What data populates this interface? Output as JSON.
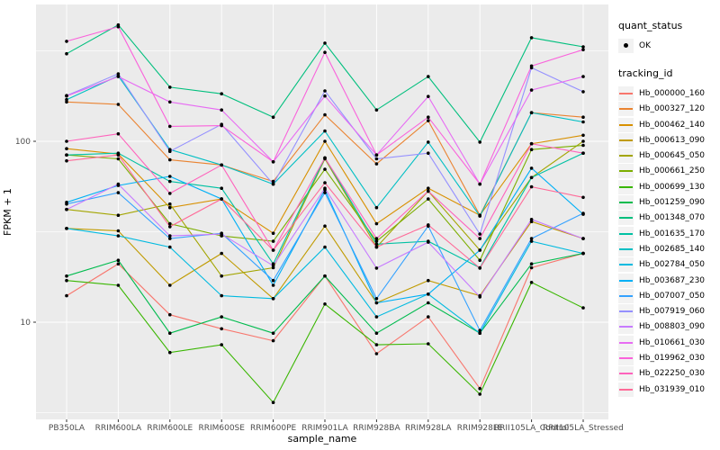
{
  "figure": {
    "background": "#FFFFFF",
    "panel_background": "#EBEBEB",
    "grid_color": "#FFFFFF",
    "point_color": "#000000",
    "tick_mark_color": "#333333",
    "tick_label_color": "#4D4D4D",
    "axis_title_color": "#000000",
    "legend_key_background": "#F2F2F2"
  },
  "axes": {
    "x_title": "sample_name",
    "y_title": "FPKM + 1",
    "y_tick_labels": [
      "10",
      "100"
    ]
  },
  "legend": {
    "quant_status_title": "quant_status",
    "quant_status_item": "OK",
    "tracking_title": "tracking_id"
  },
  "chart_data": {
    "type": "line",
    "title": "",
    "xlabel": "sample_name",
    "ylabel": "FPKM + 1",
    "y_scale": "log10",
    "ylim": [
      2.9,
      570
    ],
    "y_major_gridlines": [
      10,
      100
    ],
    "y_minor_gridlines": [
      3.16,
      31.6,
      316
    ],
    "grid": true,
    "legend_position": "right",
    "point_marker": "black dot at every vertex (quant_status OK)",
    "categories": [
      "PB350LA",
      "RRIM600LA",
      "RRIM600LE",
      "RRIM600SE",
      "RRIM600PE",
      "RRIM901LA",
      "RRIM928BA",
      "RRIM928LA",
      "RRIM928LE",
      "RRII105LA_Control",
      "RRII105LA_Stressed"
    ],
    "series": [
      {
        "name": "Hb_000000_160",
        "color": "#F8766D",
        "values": [
          14,
          21,
          11,
          9.2,
          7.9,
          18,
          6.7,
          10.7,
          4.3,
          20,
          24
        ]
      },
      {
        "name": "Hb_000327_120",
        "color": "#EA8331",
        "values": [
          165,
          160,
          79,
          74,
          60,
          140,
          75,
          130,
          39,
          144,
          136
        ]
      },
      {
        "name": "Hb_000462_140",
        "color": "#D89000",
        "values": [
          91,
          85,
          43,
          48,
          31,
          100,
          35,
          55,
          39,
          97,
          108
        ]
      },
      {
        "name": "Hb_000613_090",
        "color": "#C09B00",
        "values": [
          33,
          32,
          16,
          24,
          13.5,
          34,
          12.8,
          17,
          14,
          36,
          29
        ]
      },
      {
        "name": "Hb_000645_050",
        "color": "#A3A500",
        "values": [
          42,
          39,
          45,
          18,
          20,
          80,
          26,
          53,
          25,
          63,
          100
        ]
      },
      {
        "name": "Hb_000661_250",
        "color": "#7CAE00",
        "values": [
          84,
          80,
          35,
          30,
          28,
          70,
          28,
          48,
          22,
          90,
          95
        ]
      },
      {
        "name": "Hb_000699_130",
        "color": "#39B600",
        "values": [
          17,
          16,
          6.8,
          7.5,
          3.6,
          12.6,
          7.5,
          7.6,
          4,
          16.6,
          12
        ]
      },
      {
        "name": "Hb_001259_090",
        "color": "#00BB4E",
        "values": [
          18,
          22,
          8.7,
          10.7,
          8.7,
          18,
          8.7,
          12.8,
          8.7,
          21,
          24
        ]
      },
      {
        "name": "Hb_001348_070",
        "color": "#00BF7D",
        "values": [
          305,
          440,
          199,
          183,
          136,
          349,
          149,
          228,
          99,
          374,
          333
        ]
      },
      {
        "name": "Hb_001635_170",
        "color": "#00C1A3",
        "values": [
          84,
          86,
          60,
          55,
          21,
          81,
          27,
          28,
          20,
          63,
          86
        ]
      },
      {
        "name": "Hb_002685_140",
        "color": "#00BFC4",
        "values": [
          170,
          230,
          90,
          74,
          58,
          114,
          43,
          99,
          38.6,
          144,
          128
        ]
      },
      {
        "name": "Hb_002784_050",
        "color": "#00BAE0",
        "values": [
          33,
          30,
          26,
          14,
          13.5,
          26,
          10.7,
          14.3,
          8.7,
          28,
          24
        ]
      },
      {
        "name": "Hb_003687_230",
        "color": "#00B0F6",
        "values": [
          46,
          57,
          64,
          48,
          16,
          54,
          12.8,
          14.3,
          25,
          71,
          39.5
        ]
      },
      {
        "name": "Hb_007007_050",
        "color": "#35A2FF",
        "values": [
          45,
          52,
          29,
          31,
          17,
          52,
          13.5,
          34,
          9,
          29,
          40
        ]
      },
      {
        "name": "Hb_007919_060",
        "color": "#9590FF",
        "values": [
          179,
          236,
          88,
          124,
          58,
          190,
          80,
          86,
          30.7,
          255,
          188
        ]
      },
      {
        "name": "Hb_008803_090",
        "color": "#C77CFF",
        "values": [
          42,
          58,
          30,
          30.7,
          20.5,
          55,
          19.9,
          27.7,
          13.8,
          37,
          29
        ]
      },
      {
        "name": "Hb_010661_030",
        "color": "#E76BF3",
        "values": [
          178,
          228,
          165,
          149,
          77,
          178,
          84,
          177,
          58,
          192,
          228
        ]
      },
      {
        "name": "Hb_019962_030",
        "color": "#FA62DB",
        "values": [
          357,
          430,
          121,
          122,
          77,
          310,
          84,
          136,
          58,
          261,
          321
        ]
      },
      {
        "name": "Hb_022250_030",
        "color": "#FF62BC",
        "values": [
          100,
          110,
          51.5,
          74,
          25,
          81,
          29,
          53,
          29,
          97,
          86
        ]
      },
      {
        "name": "Hb_031939_010",
        "color": "#FF6A98",
        "values": [
          78,
          84,
          33.7,
          48,
          25,
          59,
          26,
          34.5,
          19.9,
          56,
          49
        ]
      }
    ]
  }
}
